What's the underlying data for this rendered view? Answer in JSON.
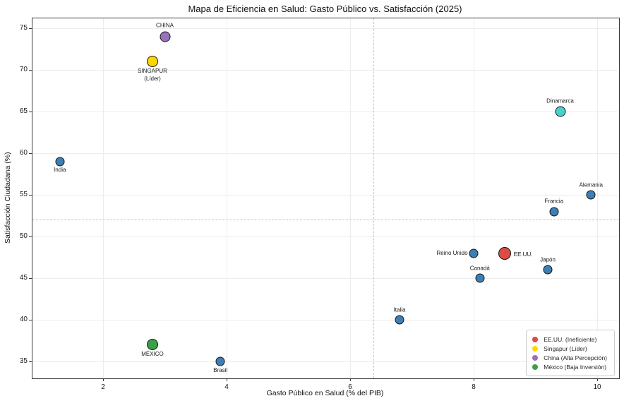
{
  "chart_data": {
    "type": "scatter",
    "title": "Mapa de Eficiencia en Salud: Gasto Público vs. Satisfacción (2025)",
    "xlabel": "Gasto Público en Salud (% del PIB)",
    "ylabel": "Satisfacción Ciudadana (%)",
    "xlim": [
      0.857,
      10.354
    ],
    "ylim": [
      32.97,
      76.19
    ],
    "x_ticks": [
      2,
      4,
      6,
      8,
      10
    ],
    "y_ticks": [
      35,
      40,
      45,
      50,
      55,
      60,
      65,
      70,
      75
    ],
    "grid": true,
    "mean_lines": {
      "x_value": 6.38,
      "y_value": 52.0,
      "style": "dashed",
      "color": "#c4c4c4"
    },
    "point_edge_color": "#161616",
    "points": [
      {
        "name": "India",
        "x": 1.3,
        "y": 59,
        "color": "#3d7fb5",
        "size": 13,
        "label": "India",
        "label_pos": "below"
      },
      {
        "name": "Singapur",
        "x": 2.8,
        "y": 71,
        "color": "#ffd700",
        "size": 16,
        "label": [
          "SINGAPUR",
          "(Líder)"
        ],
        "label_pos": "below"
      },
      {
        "name": "China",
        "x": 3.0,
        "y": 74,
        "color": "#9872bf",
        "size": 15,
        "label": "CHINA",
        "label_pos": "above"
      },
      {
        "name": "México",
        "x": 2.8,
        "y": 37,
        "color": "#39a047",
        "size": 16,
        "label": "MÉXICO",
        "label_pos": "below"
      },
      {
        "name": "Brasil",
        "x": 3.9,
        "y": 35,
        "color": "#3d7fb5",
        "size": 13,
        "label": "Brasil",
        "label_pos": "below"
      },
      {
        "name": "Italia",
        "x": 6.8,
        "y": 40,
        "color": "#3d7fb5",
        "size": 13,
        "label": "Italia",
        "label_pos": "above"
      },
      {
        "name": "Reino Unido",
        "x": 8.0,
        "y": 48,
        "color": "#3d7fb5",
        "size": 13,
        "label": "Reino Unido",
        "label_pos": "left"
      },
      {
        "name": "EE.UU.",
        "x": 8.5,
        "y": 48,
        "color": "#dc4b45",
        "size": 18,
        "label": "EE.UU.",
        "label_pos": "right"
      },
      {
        "name": "Canadá",
        "x": 8.1,
        "y": 45,
        "color": "#3d7fb5",
        "size": 13,
        "label": "Canadá",
        "label_pos": "above"
      },
      {
        "name": "Japón",
        "x": 9.2,
        "y": 46,
        "color": "#3d7fb5",
        "size": 13,
        "label": "Japón",
        "label_pos": "above"
      },
      {
        "name": "Francia",
        "x": 9.3,
        "y": 53,
        "color": "#3d7fb5",
        "size": 13,
        "label": "Francia",
        "label_pos": "above"
      },
      {
        "name": "Alemania",
        "x": 9.9,
        "y": 55,
        "color": "#3d7fb5",
        "size": 13,
        "label": "Alemania",
        "label_pos": "above"
      },
      {
        "name": "Dinamarca",
        "x": 9.4,
        "y": 65,
        "color": "#48d1cc",
        "size": 15,
        "label": "Dinamarca",
        "label_pos": "above"
      }
    ],
    "legend": {
      "position": "lower right",
      "items": [
        {
          "label": "EE.UU. (Ineficiente)",
          "color": "#dc4b45"
        },
        {
          "label": "Singapur (Líder)",
          "color": "#ffd700"
        },
        {
          "label": "China (Alta Percepción)",
          "color": "#9872bf"
        },
        {
          "label": "México (Baja Inversión)",
          "color": "#39a047"
        }
      ]
    }
  }
}
